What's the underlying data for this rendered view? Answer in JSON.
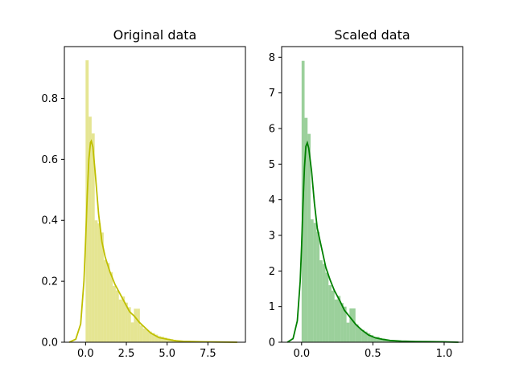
{
  "chart_data": [
    {
      "type": "histogram",
      "title": "Original data",
      "xlabel": "",
      "ylabel": "",
      "xlim": [
        -1.3,
        9.8
      ],
      "ylim": [
        0,
        0.97
      ],
      "xticks": [
        0.0,
        2.5,
        5.0,
        7.5
      ],
      "xtick_labels": [
        "0.0",
        "2.5",
        "5.0",
        "7.5"
      ],
      "yticks": [
        0.0,
        0.2,
        0.4,
        0.6,
        0.8
      ],
      "ytick_labels": [
        "0.0",
        "0.2",
        "0.4",
        "0.6",
        "0.8"
      ],
      "bar_color": "#d4d44a",
      "bar_opacity": 0.6,
      "kde_color": "#bfbf00",
      "bins": [
        {
          "x0": 0.0,
          "x1": 0.19,
          "value": 0.925
        },
        {
          "x0": 0.19,
          "x1": 0.37,
          "value": 0.74
        },
        {
          "x0": 0.37,
          "x1": 0.56,
          "value": 0.685
        },
        {
          "x0": 0.56,
          "x1": 0.74,
          "value": 0.4
        },
        {
          "x0": 0.74,
          "x1": 0.93,
          "value": 0.39
        },
        {
          "x0": 0.93,
          "x1": 1.11,
          "value": 0.36
        },
        {
          "x0": 1.11,
          "x1": 1.3,
          "value": 0.27
        },
        {
          "x0": 1.3,
          "x1": 1.48,
          "value": 0.26
        },
        {
          "x0": 1.48,
          "x1": 1.67,
          "value": 0.23
        },
        {
          "x0": 1.67,
          "x1": 1.85,
          "value": 0.185
        },
        {
          "x0": 1.85,
          "x1": 2.04,
          "value": 0.17
        },
        {
          "x0": 2.04,
          "x1": 2.22,
          "value": 0.14
        },
        {
          "x0": 2.22,
          "x1": 2.41,
          "value": 0.15
        },
        {
          "x0": 2.41,
          "x1": 2.59,
          "value": 0.13
        },
        {
          "x0": 2.59,
          "x1": 2.78,
          "value": 0.115
        },
        {
          "x0": 2.78,
          "x1": 2.96,
          "value": 0.065
        },
        {
          "x0": 2.96,
          "x1": 3.15,
          "value": 0.11
        },
        {
          "x0": 3.15,
          "x1": 3.33,
          "value": 0.11
        },
        {
          "x0": 3.33,
          "x1": 3.52,
          "value": 0.055
        },
        {
          "x0": 3.52,
          "x1": 3.7,
          "value": 0.045
        },
        {
          "x0": 3.7,
          "x1": 3.89,
          "value": 0.04
        },
        {
          "x0": 3.89,
          "x1": 4.07,
          "value": 0.035
        },
        {
          "x0": 4.07,
          "x1": 4.26,
          "value": 0.03
        },
        {
          "x0": 4.26,
          "x1": 4.44,
          "value": 0.025
        },
        {
          "x0": 4.44,
          "x1": 4.63,
          "value": 0.02
        },
        {
          "x0": 4.63,
          "x1": 4.81,
          "value": 0.018
        },
        {
          "x0": 4.81,
          "x1": 5.0,
          "value": 0.015
        },
        {
          "x0": 5.0,
          "x1": 5.19,
          "value": 0.012
        },
        {
          "x0": 5.19,
          "x1": 5.37,
          "value": 0.01
        },
        {
          "x0": 5.37,
          "x1": 5.56,
          "value": 0.008
        },
        {
          "x0": 5.56,
          "x1": 5.74,
          "value": 0.006
        },
        {
          "x0": 5.74,
          "x1": 5.93,
          "value": 0.005
        },
        {
          "x0": 5.93,
          "x1": 6.11,
          "value": 0.004
        }
      ],
      "kde": {
        "x": [
          -1.0,
          -0.6,
          -0.3,
          -0.1,
          0.0,
          0.1,
          0.2,
          0.3,
          0.35,
          0.45,
          0.6,
          0.8,
          1.0,
          1.2,
          1.5,
          1.8,
          2.1,
          2.4,
          2.7,
          3.0,
          3.3,
          3.6,
          4.0,
          4.5,
          5.0,
          5.5,
          6.0,
          7.0,
          8.0,
          9.3
        ],
        "y": [
          0.0,
          0.01,
          0.06,
          0.2,
          0.33,
          0.48,
          0.6,
          0.655,
          0.66,
          0.64,
          0.55,
          0.42,
          0.33,
          0.28,
          0.23,
          0.19,
          0.16,
          0.13,
          0.1,
          0.085,
          0.065,
          0.05,
          0.03,
          0.015,
          0.01,
          0.005,
          0.003,
          0.0015,
          0.0008,
          0.0
        ]
      }
    },
    {
      "type": "histogram",
      "title": "Scaled data",
      "xlabel": "",
      "ylabel": "",
      "xlim": [
        -0.14,
        1.13
      ],
      "ylim": [
        0,
        8.3
      ],
      "xticks": [
        0.0,
        0.5,
        1.0
      ],
      "xtick_labels": [
        "0.0",
        "0.5",
        "1.0"
      ],
      "yticks": [
        0,
        1,
        2,
        3,
        4,
        5,
        6,
        7,
        8
      ],
      "ytick_labels": [
        "0",
        "1",
        "2",
        "3",
        "4",
        "5",
        "6",
        "7",
        "8"
      ],
      "bar_color": "#59b159",
      "bar_opacity": 0.6,
      "kde_color": "#008000",
      "bins": [
        {
          "x0": 0.0,
          "x1": 0.021,
          "value": 7.9
        },
        {
          "x0": 0.021,
          "x1": 0.042,
          "value": 6.3
        },
        {
          "x0": 0.042,
          "x1": 0.063,
          "value": 5.85
        },
        {
          "x0": 0.063,
          "x1": 0.084,
          "value": 3.45
        },
        {
          "x0": 0.084,
          "x1": 0.105,
          "value": 3.35
        },
        {
          "x0": 0.105,
          "x1": 0.126,
          "value": 3.1
        },
        {
          "x0": 0.126,
          "x1": 0.147,
          "value": 2.3
        },
        {
          "x0": 0.147,
          "x1": 0.168,
          "value": 2.2
        },
        {
          "x0": 0.168,
          "x1": 0.189,
          "value": 1.95
        },
        {
          "x0": 0.189,
          "x1": 0.21,
          "value": 1.6
        },
        {
          "x0": 0.21,
          "x1": 0.231,
          "value": 1.45
        },
        {
          "x0": 0.231,
          "x1": 0.252,
          "value": 1.2
        },
        {
          "x0": 0.252,
          "x1": 0.273,
          "value": 1.3
        },
        {
          "x0": 0.273,
          "x1": 0.294,
          "value": 1.1
        },
        {
          "x0": 0.294,
          "x1": 0.315,
          "value": 1.0
        },
        {
          "x0": 0.315,
          "x1": 0.336,
          "value": 0.55
        },
        {
          "x0": 0.336,
          "x1": 0.357,
          "value": 0.95
        },
        {
          "x0": 0.357,
          "x1": 0.378,
          "value": 0.95
        },
        {
          "x0": 0.378,
          "x1": 0.399,
          "value": 0.5
        },
        {
          "x0": 0.399,
          "x1": 0.42,
          "value": 0.4
        },
        {
          "x0": 0.42,
          "x1": 0.441,
          "value": 0.35
        },
        {
          "x0": 0.441,
          "x1": 0.462,
          "value": 0.3
        },
        {
          "x0": 0.462,
          "x1": 0.483,
          "value": 0.25
        },
        {
          "x0": 0.483,
          "x1": 0.504,
          "value": 0.2
        },
        {
          "x0": 0.504,
          "x1": 0.525,
          "value": 0.15
        },
        {
          "x0": 0.525,
          "x1": 0.546,
          "value": 0.15
        },
        {
          "x0": 0.546,
          "x1": 0.567,
          "value": 0.12
        },
        {
          "x0": 0.567,
          "x1": 0.588,
          "value": 0.1
        },
        {
          "x0": 0.588,
          "x1": 0.609,
          "value": 0.08
        },
        {
          "x0": 0.609,
          "x1": 0.63,
          "value": 0.06
        },
        {
          "x0": 0.63,
          "x1": 0.651,
          "value": 0.05
        },
        {
          "x0": 0.651,
          "x1": 0.672,
          "value": 0.04
        }
      ],
      "kde": {
        "x": [
          -0.1,
          -0.06,
          -0.03,
          -0.01,
          0.0,
          0.01,
          0.02,
          0.03,
          0.04,
          0.05,
          0.07,
          0.09,
          0.11,
          0.14,
          0.17,
          0.2,
          0.23,
          0.27,
          0.3,
          0.34,
          0.38,
          0.42,
          0.47,
          0.52,
          0.57,
          0.62,
          0.7,
          0.8,
          0.9,
          1.0,
          1.1
        ],
        "y": [
          0.0,
          0.1,
          0.6,
          1.7,
          2.7,
          3.9,
          4.9,
          5.5,
          5.6,
          5.45,
          4.8,
          3.9,
          3.2,
          2.65,
          2.1,
          1.75,
          1.45,
          1.15,
          0.9,
          0.7,
          0.5,
          0.35,
          0.2,
          0.12,
          0.08,
          0.05,
          0.03,
          0.02,
          0.015,
          0.01,
          0.0
        ]
      }
    }
  ]
}
